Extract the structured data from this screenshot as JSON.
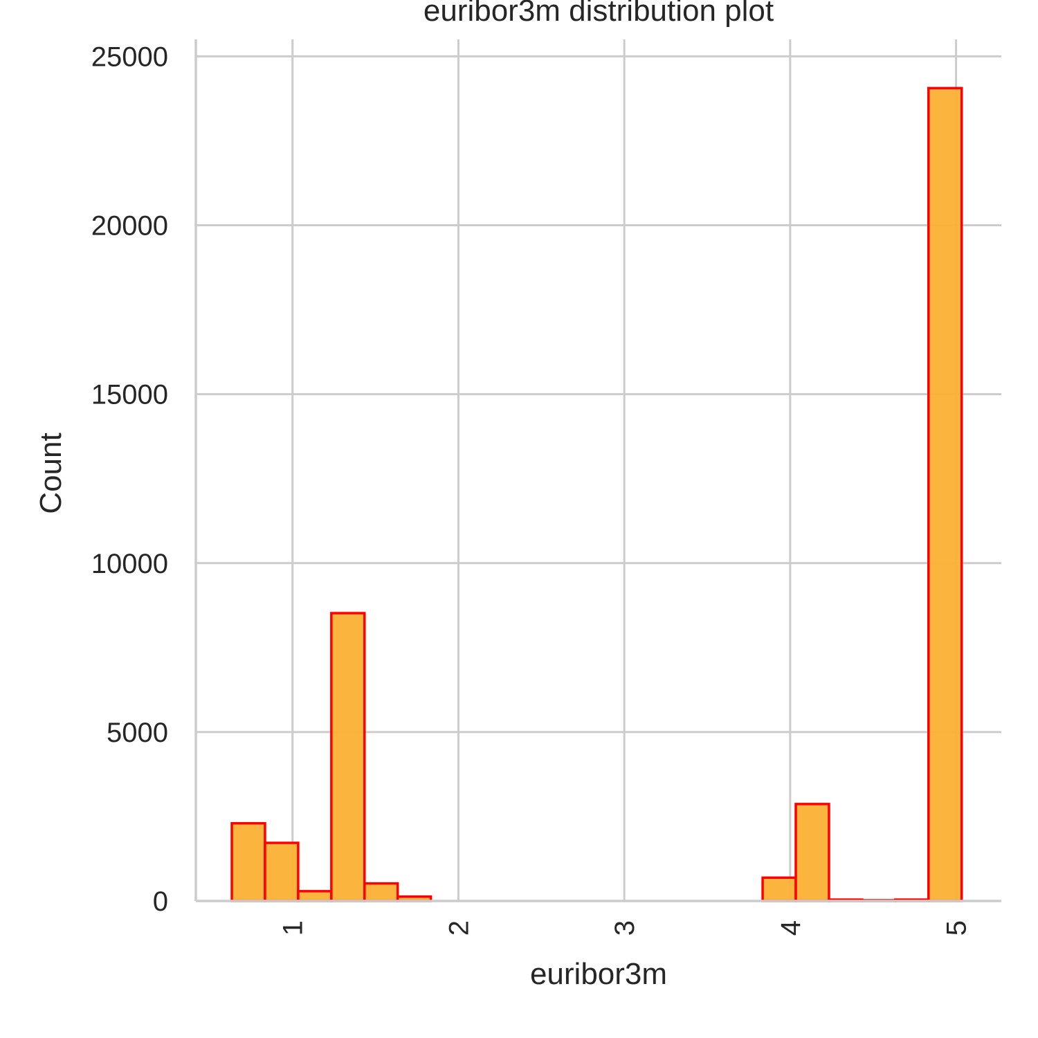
{
  "chart_data": {
    "type": "bar",
    "title": "euribor3m distribution plot",
    "xlabel": "euribor3m",
    "ylabel": "Count",
    "xlim": [
      0.417,
      5.273
    ],
    "ylim": [
      0,
      25500
    ],
    "x_ticks": [
      1,
      2,
      3,
      4,
      5
    ],
    "y_ticks": [
      0,
      5000,
      10000,
      15000,
      20000,
      25000
    ],
    "x_tick_rotation": -90,
    "grid": true,
    "bar_fill_color": "#fbb034",
    "bar_fill_opacity": 0.95,
    "bar_edge_color": "#ff0000",
    "grid_color": "#cccccc",
    "text_color": "#262626",
    "bins": [
      {
        "x0": 0.634,
        "x1": 0.834,
        "count": 2300
      },
      {
        "x0": 0.834,
        "x1": 1.034,
        "count": 1720
      },
      {
        "x0": 1.034,
        "x1": 1.234,
        "count": 290
      },
      {
        "x0": 1.234,
        "x1": 1.434,
        "count": 8520
      },
      {
        "x0": 1.434,
        "x1": 1.634,
        "count": 520
      },
      {
        "x0": 1.634,
        "x1": 1.834,
        "count": 130
      },
      {
        "x0": 1.834,
        "x1": 2.034,
        "count": 0
      },
      {
        "x0": 2.034,
        "x1": 2.234,
        "count": 0
      },
      {
        "x0": 2.234,
        "x1": 2.434,
        "count": 0
      },
      {
        "x0": 2.434,
        "x1": 2.634,
        "count": 0
      },
      {
        "x0": 2.634,
        "x1": 2.834,
        "count": 0
      },
      {
        "x0": 2.834,
        "x1": 3.034,
        "count": 0
      },
      {
        "x0": 3.034,
        "x1": 3.234,
        "count": 0
      },
      {
        "x0": 3.234,
        "x1": 3.434,
        "count": 0
      },
      {
        "x0": 3.434,
        "x1": 3.634,
        "count": 0
      },
      {
        "x0": 3.634,
        "x1": 3.834,
        "count": 0
      },
      {
        "x0": 3.834,
        "x1": 4.034,
        "count": 690
      },
      {
        "x0": 4.034,
        "x1": 4.234,
        "count": 2870
      },
      {
        "x0": 4.234,
        "x1": 4.434,
        "count": 40
      },
      {
        "x0": 4.434,
        "x1": 4.634,
        "count": 20
      },
      {
        "x0": 4.634,
        "x1": 4.834,
        "count": 40
      },
      {
        "x0": 4.834,
        "x1": 5.034,
        "count": 24060
      }
    ]
  }
}
